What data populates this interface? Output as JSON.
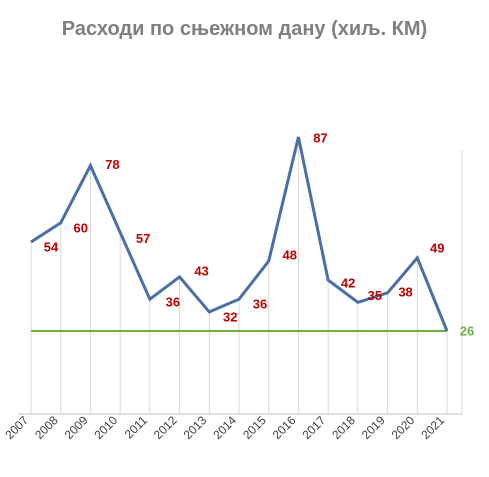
{
  "chart_data": {
    "type": "line",
    "title": "Расходи по сњежном дану (хиљ. КМ)",
    "x": [
      "2007",
      "2008",
      "2009",
      "2010",
      "2011",
      "2012",
      "2013",
      "2014",
      "2015",
      "2016",
      "2017",
      "2018",
      "2019",
      "2020",
      "2021"
    ],
    "series": [
      {
        "values": [
          54,
          60,
          78,
          57,
          36,
          43,
          32,
          36,
          48,
          87,
          42,
          35,
          38,
          49,
          26
        ]
      }
    ],
    "reference_line": {
      "value": 26,
      "label": "26"
    },
    "grid": "vertical",
    "legend": "none",
    "colors": {
      "series": "#4a6fa5",
      "reference": "#70ad47",
      "labels": "#c00000",
      "title": "#7f7f7f"
    }
  }
}
